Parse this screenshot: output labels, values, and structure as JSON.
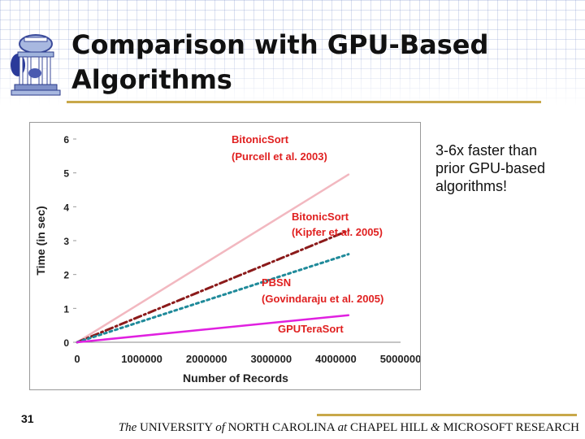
{
  "slide": {
    "title_line1": "Comparison with GPU-Based",
    "title_line2": "Algorithms",
    "callout_line1": "3-6x faster than",
    "callout_line2": "prior GPU-based",
    "callout_line3": "algorithms!",
    "slide_number": "31"
  },
  "footer": {
    "the": "The",
    "university": " UNIVERSITY ",
    "of": "of",
    "north_carolina": " NORTH CAROLINA ",
    "at": "at",
    "chapel_hill": " CHAPEL HILL ",
    "amp": "&",
    "microsoft": " MICROSOFT RESEARCH"
  },
  "colors": {
    "accent_gold": "#c8a84a",
    "bitonic_purcell": "#f2b8c0",
    "bitonic_kipfer": "#8b1a1a",
    "pbsn": "#1f8a9a",
    "gputerasort": "#e020e0",
    "label_red": "#e02020"
  },
  "chart_data": {
    "type": "line",
    "title": "",
    "xlabel": "Number of Records",
    "ylabel": "Time (in sec)",
    "xlim": [
      0,
      5000000
    ],
    "ylim": [
      0,
      6
    ],
    "xticks": [
      0,
      1000000,
      2000000,
      3000000,
      4000000,
      5000000
    ],
    "xtick_labels": [
      "0",
      "1000000",
      "2000000",
      "3000000",
      "4000000",
      "5000000"
    ],
    "yticks": [
      0,
      1,
      2,
      3,
      4,
      5,
      6
    ],
    "ytick_labels": [
      "0",
      "1",
      "2",
      "3",
      "4",
      "5",
      "6"
    ],
    "grid": false,
    "series": [
      {
        "name": "BitonicSort (Purcell et al. 2003)",
        "label_line1": "BitonicSort",
        "label_line2": "(Purcell et al. 2003)",
        "style": "solid",
        "color": "#f2b8c0",
        "x": [
          0,
          4194304
        ],
        "y": [
          0,
          4.95
        ]
      },
      {
        "name": "BitonicSort (Kipfer et al. 2005)",
        "label_line1": "BitonicSort",
        "label_line2": "(Kipfer et al. 2005)",
        "style": "dashdot",
        "color": "#8b1a1a",
        "x": [
          0,
          4194304
        ],
        "y": [
          0,
          3.3
        ]
      },
      {
        "name": "PBSN (Govindaraju et al. 2005)",
        "label_line1": "PBSN",
        "label_line2": "(Govindaraju et al. 2005)",
        "style": "dotted",
        "color": "#1f8a9a",
        "x": [
          0,
          4194304
        ],
        "y": [
          0,
          2.6
        ]
      },
      {
        "name": "GPUTeraSort",
        "label_line1": "GPUTeraSort",
        "label_line2": "",
        "style": "solid",
        "color": "#e020e0",
        "x": [
          0,
          4194304
        ],
        "y": [
          0,
          0.8
        ]
      }
    ]
  }
}
